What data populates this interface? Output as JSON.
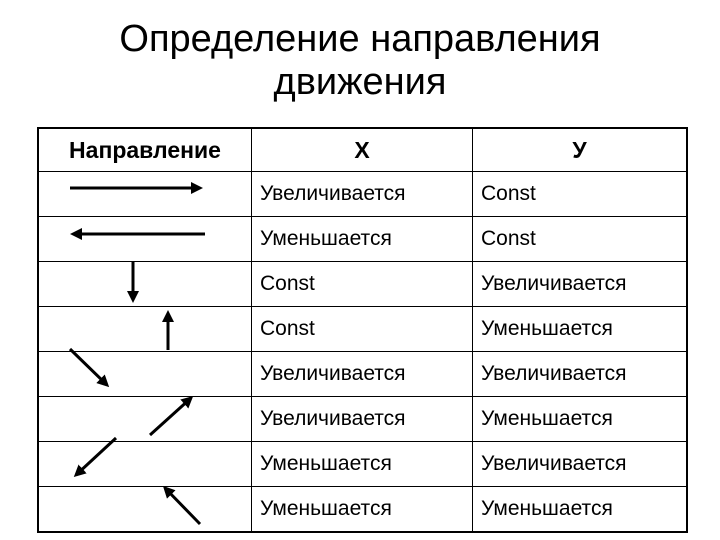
{
  "title_line1": "Определение направления",
  "title_line2": "движения",
  "headers": {
    "direction": "Направление",
    "x": "Х",
    "y": "У"
  },
  "rows": [
    {
      "arrow": "arrow-right-icon",
      "x": "Увеличивается",
      "y": "Const"
    },
    {
      "arrow": "arrow-left-icon",
      "x": "Уменьшается",
      "y": "Const"
    },
    {
      "arrow": "arrow-down-icon",
      "x": "Const",
      "y": "Увеличивается"
    },
    {
      "arrow": "arrow-up-icon",
      "x": "Const",
      "y": "Уменьшается"
    },
    {
      "arrow": "arrow-down-right-icon",
      "x": "Увеличивается",
      "y": "Увеличивается"
    },
    {
      "arrow": "arrow-up-right-icon",
      "x": "Увеличивается",
      "y": "Уменьшается"
    },
    {
      "arrow": "arrow-down-left-icon",
      "x": "Уменьшается",
      "y": "Увеличивается"
    },
    {
      "arrow": "arrow-up-left-icon",
      "x": "Уменьшается",
      "y": "Уменьшается"
    }
  ]
}
